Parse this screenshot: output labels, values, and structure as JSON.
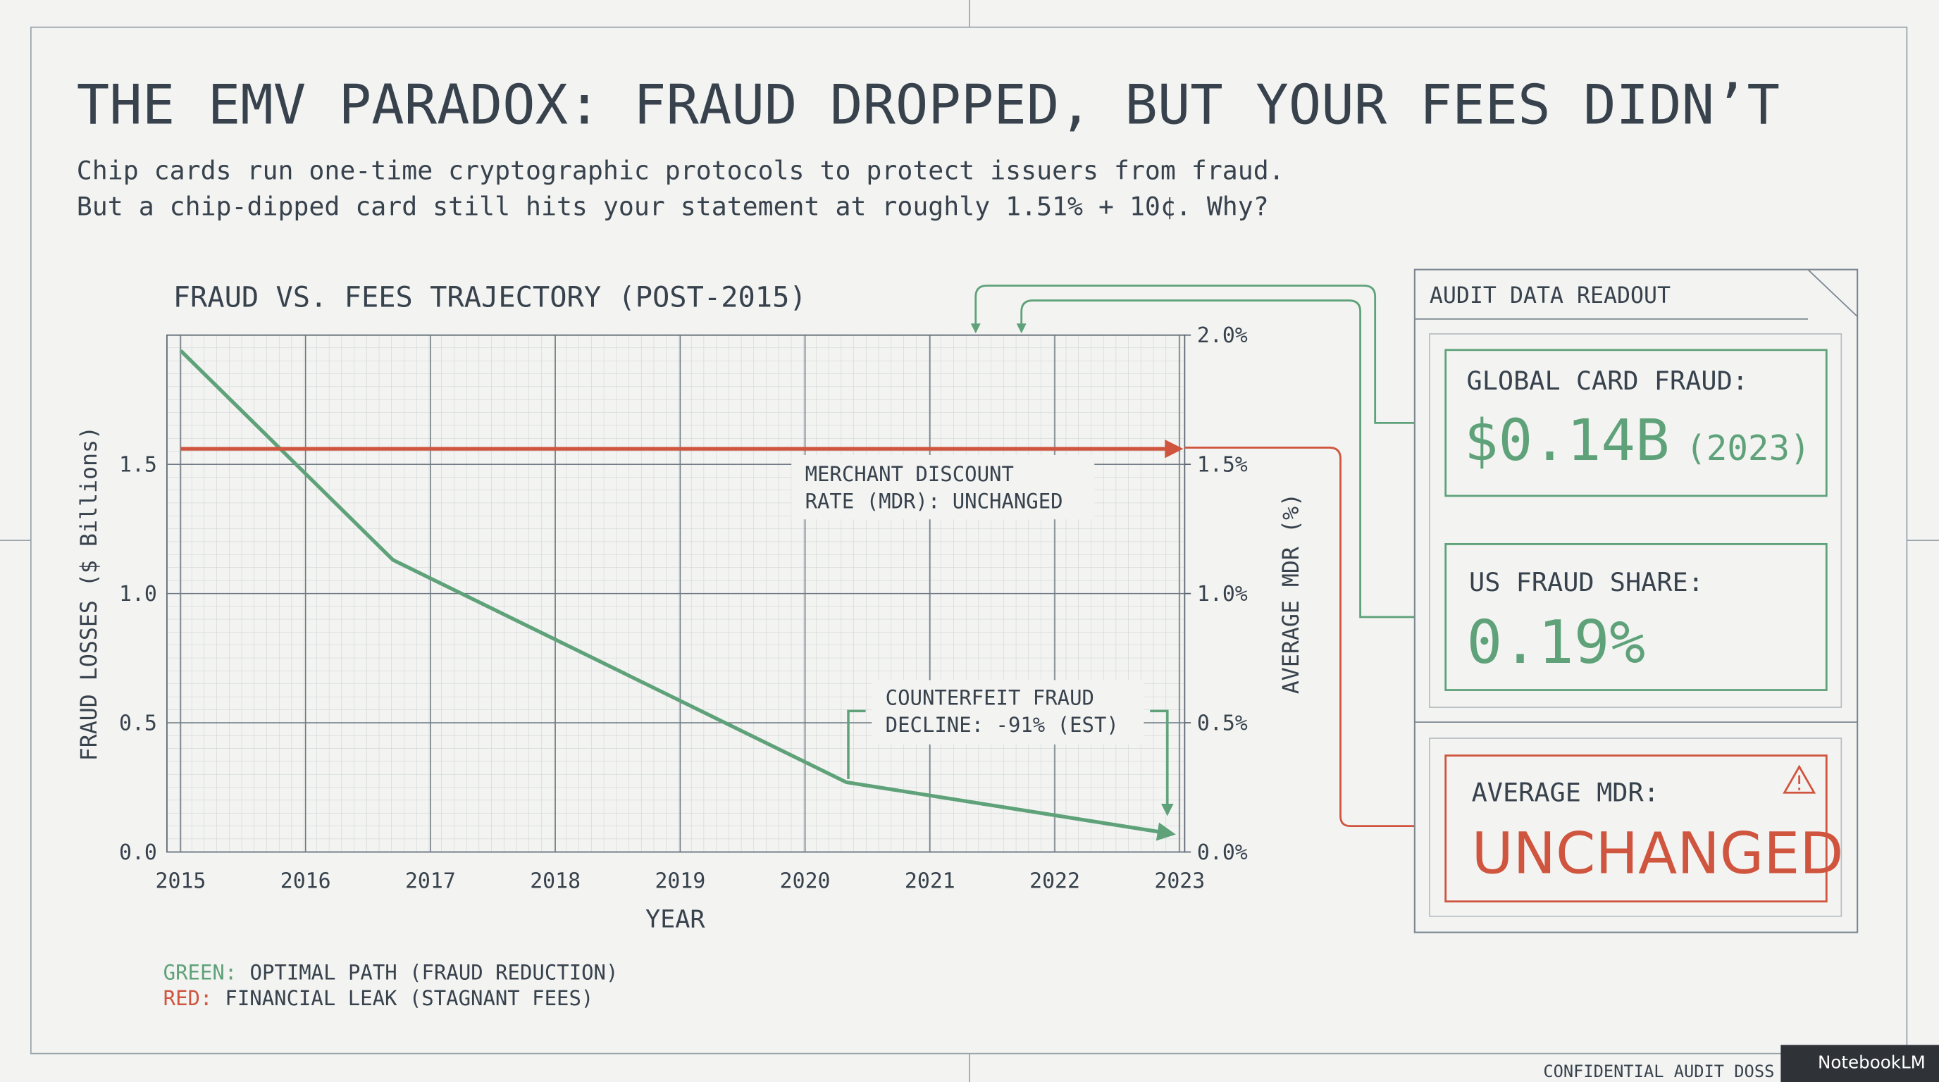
{
  "header": {
    "title": "THE EMV PARADOX: FRAUD DROPPED, BUT YOUR FEES DIDN’T",
    "subtitle": [
      "Chip cards run one-time cryptographic protocols to protect issuers from fraud.",
      "But a chip-dipped card still hits your statement at roughly 1.51% + 10¢. Why?"
    ]
  },
  "chart_data": {
    "type": "line",
    "title": "FRAUD VS. FEES TRAJECTORY (POST-2015)",
    "x_label": "YEAR",
    "y_label": "FRAUD LOSSES ($ Billions)",
    "y2_label": "AVERAGE MDR (%)",
    "xlim": [
      2014.89,
      2023.04
    ],
    "xticks": [
      2015,
      2016,
      2017,
      2018,
      2019,
      2020,
      2021,
      2022,
      2023
    ],
    "ylim": [
      0,
      2
    ],
    "yticks": [
      {
        "value": 0,
        "label": "0.0"
      },
      {
        "value": 0.5,
        "label": "0.5"
      },
      {
        "value": 1,
        "label": "1.0"
      },
      {
        "value": 1.5,
        "label": "1.5"
      }
    ],
    "y2lim": [
      0,
      2
    ],
    "y2ticks": [
      {
        "value": 0,
        "label": "0.0%"
      },
      {
        "value": 0.5,
        "label": "0.5%"
      },
      {
        "value": 1,
        "label": "1.0%"
      },
      {
        "value": 1.5,
        "label": "1.5%"
      },
      {
        "value": 2,
        "label": "2.0%"
      }
    ],
    "grid": true,
    "series": [
      {
        "name": "OPTIMAL PATH (FRAUD REDUCTION)",
        "legend_key": "GREEN:",
        "color": "#5fa27a",
        "x": [
          2015,
          2016.7,
          2020.33,
          2022.94
        ],
        "values": [
          1.94,
          1.13,
          0.27,
          0.07
        ]
      },
      {
        "name": "FINANCIAL LEAK (STAGNANT FEES)",
        "legend_key": "RED:",
        "color": "#d0553f",
        "axis": "y2",
        "x": [
          2015,
          2023
        ],
        "values": [
          1.56,
          1.56
        ]
      }
    ],
    "annotations": [
      [
        "MERCHANT DISCOUNT",
        "RATE (MDR): UNCHANGED"
      ],
      [
        "COUNTERFEIT FRAUD",
        "DECLINE: -91% (EST)"
      ]
    ]
  },
  "panel": {
    "heading": "AUDIT DATA READOUT",
    "cards": [
      {
        "label": "GLOBAL CARD FRAUD:",
        "value": "$0.14B",
        "note": "(2023)"
      },
      {
        "label": "US FRAUD SHARE:",
        "value": "0.19%"
      },
      {
        "label": "AVERAGE MDR:",
        "value": "UNCHANGED"
      }
    ]
  },
  "footer": {
    "text": "CONFIDENTIAL AUDIT DOSS",
    "brand": "NotebookLM"
  }
}
